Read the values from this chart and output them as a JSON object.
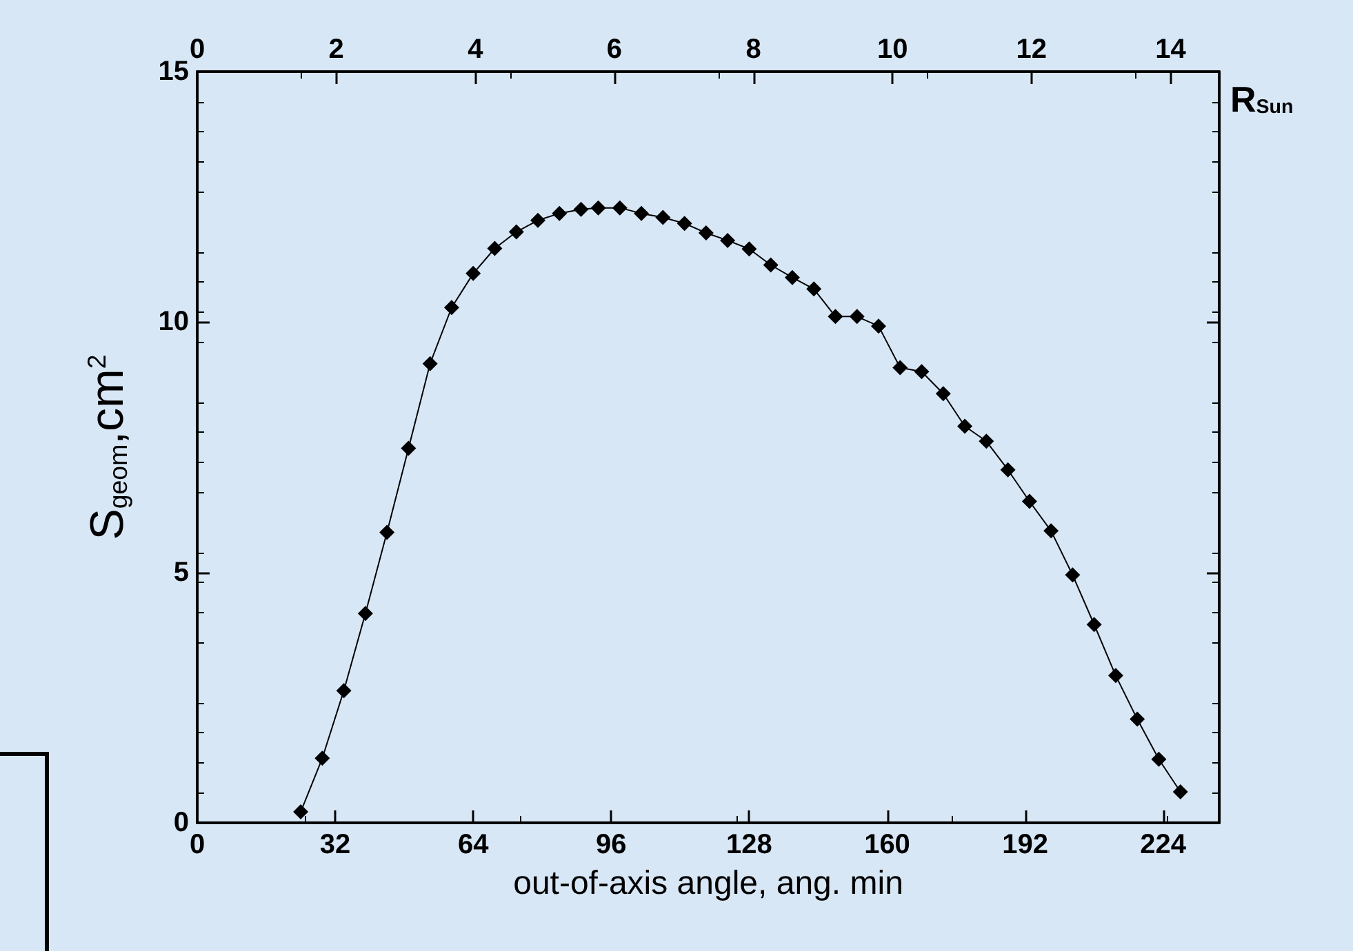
{
  "chart_data": {
    "type": "line",
    "xlabel": "out-of-axis angle, ang. min",
    "ylabel": "S$_{geom}$,cm$^{2}$",
    "x2label": "R$_{Sun}$",
    "xlim": [
      0,
      237
    ],
    "xticks": [
      0,
      32,
      64,
      96,
      128,
      160,
      192,
      224
    ],
    "x2lim": [
      0,
      14.7
    ],
    "x2ticks": [
      0,
      2,
      4,
      6,
      8,
      10,
      12,
      14
    ],
    "ylim": [
      0,
      15
    ],
    "yticks": [
      0,
      5,
      10,
      15
    ],
    "marker": "diamond",
    "line_style": "solid",
    "series": [
      {
        "color": "#000000",
        "x": [
          24,
          29,
          34,
          39,
          44,
          49,
          54,
          59,
          64,
          69,
          74,
          79,
          84,
          89,
          93,
          98,
          103,
          108,
          113,
          118,
          123,
          128,
          133,
          138,
          143,
          148,
          153,
          158,
          163,
          168,
          173,
          178,
          183,
          188,
          193,
          198,
          203,
          208,
          213,
          218,
          223,
          228
        ],
        "values": [
          0.22,
          1.29,
          2.64,
          4.18,
          5.8,
          7.48,
          9.17,
          10.29,
          10.97,
          11.47,
          11.8,
          12.03,
          12.17,
          12.25,
          12.28,
          12.28,
          12.17,
          12.09,
          11.97,
          11.78,
          11.63,
          11.46,
          11.14,
          10.89,
          10.66,
          10.11,
          10.11,
          9.92,
          9.09,
          9.01,
          8.57,
          7.92,
          7.62,
          7.05,
          6.42,
          5.83,
          4.95,
          3.96,
          2.94,
          2.07,
          1.27,
          0.62
        ]
      }
    ]
  }
}
